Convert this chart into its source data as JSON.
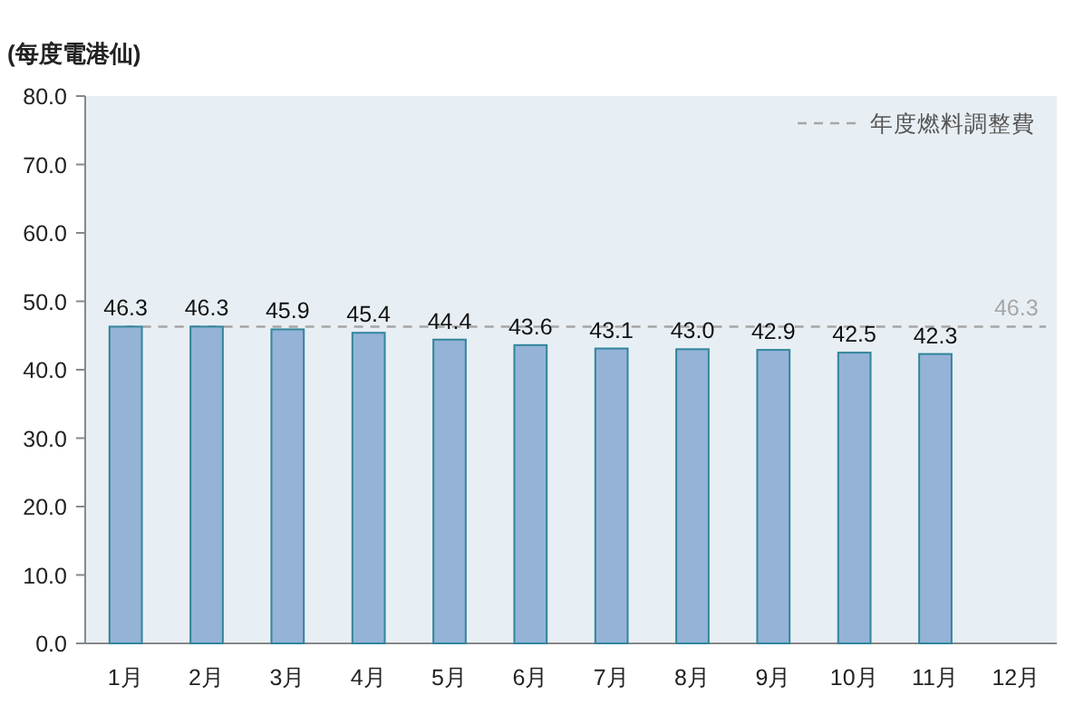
{
  "chart_data": {
    "type": "bar",
    "ylabel": "(每度電港仙)",
    "categories": [
      "1月",
      "2月",
      "3月",
      "4月",
      "5月",
      "6月",
      "7月",
      "8月",
      "9月",
      "10月",
      "11月",
      "12月"
    ],
    "values": [
      46.3,
      46.3,
      45.9,
      45.4,
      44.4,
      43.6,
      43.1,
      43.0,
      42.9,
      42.5,
      42.3,
      null
    ],
    "color": "#95b3d7",
    "ylim": [
      0,
      80
    ],
    "yticks": [
      {
        "value": 0,
        "label": "0.0"
      },
      {
        "value": 10,
        "label": "10.0"
      },
      {
        "value": 20,
        "label": "20.0"
      },
      {
        "value": 30,
        "label": "30.0"
      },
      {
        "value": 40,
        "label": "40.0"
      },
      {
        "value": 50,
        "label": "50.0"
      },
      {
        "value": 60,
        "label": "60.0"
      },
      {
        "value": 70,
        "label": "70.0"
      },
      {
        "value": 80,
        "label": "80.0"
      }
    ],
    "value_labels": [
      "46.3",
      "46.3",
      "45.9",
      "45.4",
      "44.4",
      "43.6",
      "43.1",
      "43.0",
      "42.9",
      "42.5",
      "42.3",
      null
    ],
    "ref_lines": [
      {
        "axis": "y",
        "value": 46.3,
        "label": "年度燃料調整費",
        "color": "#a6a6a6",
        "line_style": "dashed"
      }
    ],
    "annotations": [
      {
        "text": "46.3",
        "x": "12月",
        "y": 46.3
      }
    ],
    "legend": "top right",
    "grid": false
  }
}
